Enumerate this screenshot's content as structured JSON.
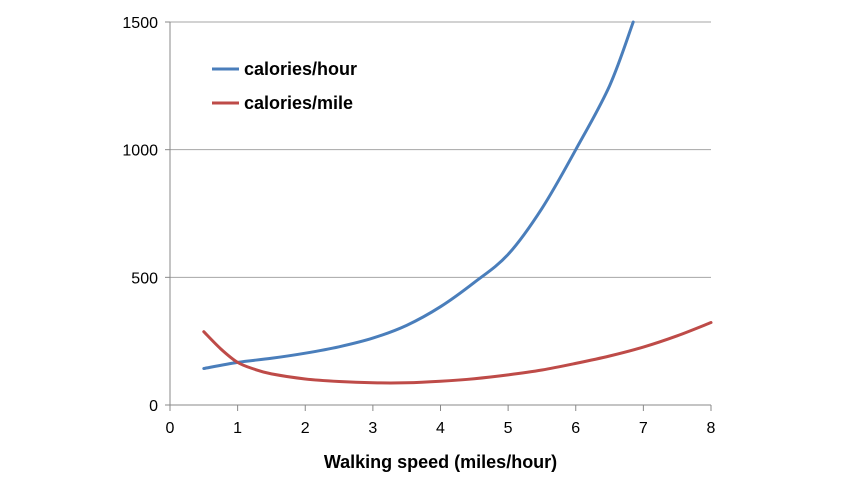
{
  "chart_data": {
    "type": "line",
    "title": "",
    "xlabel": "Walking speed (miles/hour)",
    "ylabel": "",
    "xlim": [
      0,
      8
    ],
    "ylim": [
      0,
      1500
    ],
    "xticks": [
      0,
      1,
      2,
      3,
      4,
      5,
      6,
      7,
      8
    ],
    "yticks": [
      0,
      500,
      1000,
      1500
    ],
    "grid": "horizontal",
    "legend_position": "top-left",
    "series": [
      {
        "name": "calories/hour",
        "color": "#4a7ebb",
        "x": [
          0.5,
          1,
          1.5,
          2,
          2.5,
          3,
          3.5,
          4,
          4.5,
          5,
          5.5,
          6,
          6.5,
          6.85
        ],
        "y": [
          143,
          167,
          183,
          203,
          228,
          262,
          312,
          385,
          480,
          590,
          770,
          1000,
          1250,
          1500
        ]
      },
      {
        "name": "calories/mile",
        "color": "#be4b48",
        "x": [
          0.5,
          0.75,
          1,
          1.25,
          1.5,
          2,
          2.5,
          3,
          3.5,
          4,
          4.5,
          5,
          5.5,
          6,
          6.5,
          7,
          7.5,
          8
        ],
        "y": [
          287,
          220,
          167,
          140,
          122,
          102,
          92,
          87,
          87,
          93,
          103,
          118,
          137,
          163,
          192,
          227,
          271,
          323
        ]
      }
    ]
  }
}
